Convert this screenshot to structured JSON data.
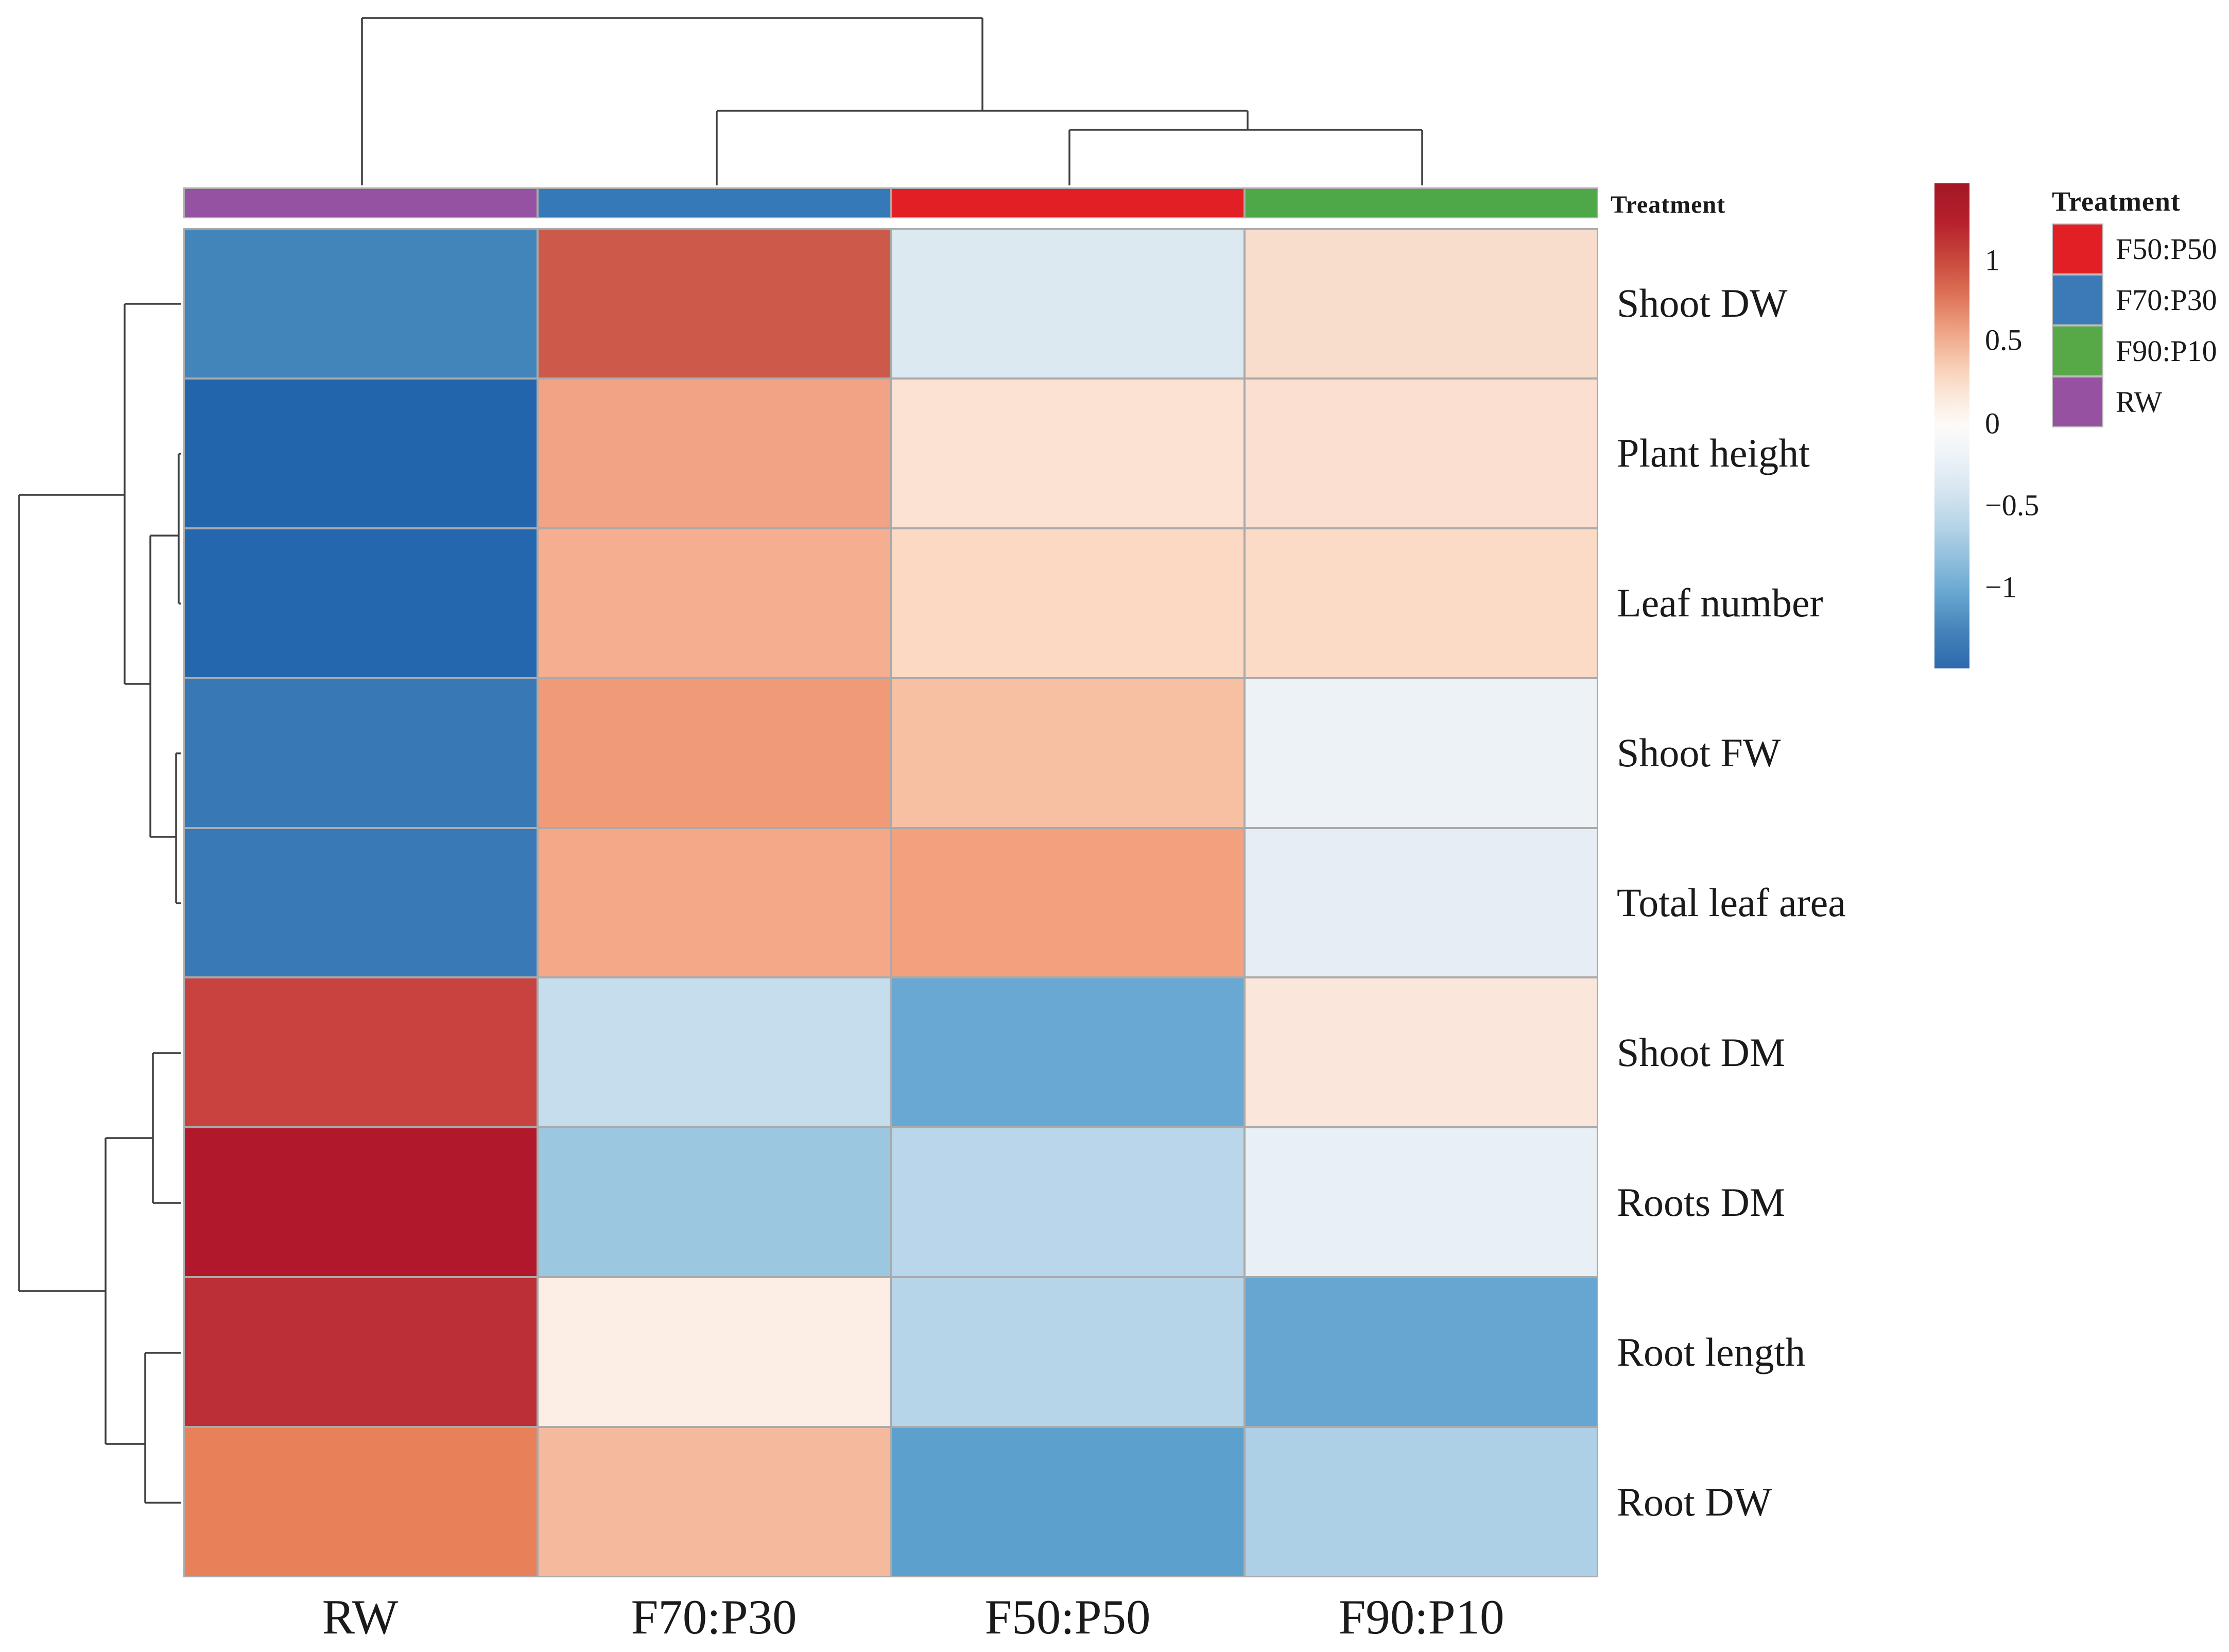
{
  "figure": {
    "background": "#ffffff"
  },
  "annotation_bar": {
    "label": "Treatment",
    "segments": [
      {
        "treatment": "RW",
        "color": "#9552a2"
      },
      {
        "treatment": "F70:P30",
        "color": "#3579b8"
      },
      {
        "treatment": "F50:P50",
        "color": "#e21f25"
      },
      {
        "treatment": "F90:P10",
        "color": "#4fa847"
      }
    ]
  },
  "chart_data": {
    "type": "heatmap",
    "title": "",
    "columns": [
      "RW",
      "F70:P30",
      "F50:P50",
      "F90:P10"
    ],
    "rows": [
      "Shoot DW",
      "Plant height",
      "Leaf number",
      "Shoot FW",
      "Total leaf area",
      "Shoot DM",
      "Roots DM",
      "Root length",
      "Root DW"
    ],
    "values_zscore_estimated": [
      [
        -1.0,
        1.15,
        -0.35,
        0.5
      ],
      [
        -1.4,
        0.8,
        0.45,
        0.45
      ],
      [
        -1.35,
        0.7,
        0.55,
        0.55
      ],
      [
        -1.2,
        0.85,
        0.65,
        -0.15
      ],
      [
        -1.15,
        0.75,
        0.8,
        -0.3
      ],
      [
        1.25,
        -0.55,
        -1.05,
        0.4
      ],
      [
        1.5,
        -0.75,
        -0.6,
        -0.25
      ],
      [
        1.35,
        0.2,
        -0.6,
        -1.05
      ],
      [
        0.95,
        0.6,
        -1.15,
        -0.7
      ]
    ],
    "cell_colors": [
      [
        "#4285ba",
        "#cb5a4a",
        "#dde9f1",
        "#f9ddcc"
      ],
      [
        "#2265ad",
        "#f2a285",
        "#fbe2d3",
        "#fbe0d1"
      ],
      [
        "#2467af",
        "#f6ae90",
        "#fbd9c3",
        "#fbdbc6"
      ],
      [
        "#3778b5",
        "#f09a78",
        "#f7c0a3",
        "#edf2f7"
      ],
      [
        "#3879b6",
        "#f4a888",
        "#f3a07f",
        "#e6edf4"
      ],
      [
        "#c8423f",
        "#c6dded",
        "#68a8d3",
        "#fae6db"
      ],
      [
        "#b2182b",
        "#9bc7e0",
        "#b9d6ea",
        "#e8eff5"
      ],
      [
        "#bc2f36",
        "#fceee5",
        "#b7d5e9",
        "#66a6d1"
      ],
      [
        "#e8815a",
        "#f5b99e",
        "#5ca0cd",
        "#aed0e6"
      ]
    ],
    "row_clustering": "((Shoot DW,((Plant height,Leaf number),(Shoot FW,Total leaf area))),((Shoot DM,Roots DM),(Root length,Root DW)))",
    "column_clustering": "(RW,(F70:P30,(F50:P50,F90:P10)))",
    "colorbar": {
      "range": [
        -1.5,
        1.5
      ],
      "ticks": [
        {
          "label": "1",
          "pos_pct": 15.8
        },
        {
          "label": "0.5",
          "pos_pct": 32.3
        },
        {
          "label": "0",
          "pos_pct": 49.5
        },
        {
          "label": "−0.5",
          "pos_pct": 66.3
        },
        {
          "label": "−1",
          "pos_pct": 83.2
        }
      ],
      "gradient_stops": [
        [
          "0%",
          "#a41726"
        ],
        [
          "8%",
          "#b6202c"
        ],
        [
          "16%",
          "#c94a3d"
        ],
        [
          "23%",
          "#dd7257"
        ],
        [
          "30%",
          "#eda081"
        ],
        [
          "38%",
          "#f7d0b6"
        ],
        [
          "44%",
          "#fbe9dc"
        ],
        [
          "50%",
          "#fcfbf9"
        ],
        [
          "56%",
          "#eef3f7"
        ],
        [
          "63%",
          "#d7e6f0"
        ],
        [
          "70%",
          "#b9d6e9"
        ],
        [
          "77%",
          "#93c0de"
        ],
        [
          "84%",
          "#6ba9d3"
        ],
        [
          "92%",
          "#4684ba"
        ],
        [
          "100%",
          "#2c69ae"
        ]
      ]
    }
  },
  "legend": {
    "title": "Treatment",
    "items": [
      {
        "label": "F50:P50",
        "color": "#e21f25"
      },
      {
        "label": "F70:P30",
        "color": "#3b7ab7"
      },
      {
        "label": "F90:P10",
        "color": "#57a847"
      },
      {
        "label": "RW",
        "color": "#9651a0"
      }
    ]
  },
  "dendrograms": {
    "stroke": "#3f3f3f",
    "col_segments": [
      [
        703,
        35,
        1908,
        35
      ],
      [
        703,
        35,
        703,
        360
      ],
      [
        1908,
        35,
        1908,
        215
      ],
      [
        1392,
        215,
        2423,
        215
      ],
      [
        1392,
        215,
        1392,
        360
      ],
      [
        2423,
        215,
        2423,
        252
      ],
      [
        2077,
        252,
        2762,
        252
      ],
      [
        2077,
        252,
        2077,
        360
      ],
      [
        2762,
        252,
        2762,
        360
      ]
    ],
    "row_segments": [
      [
        37,
        961,
        242,
        961
      ],
      [
        37,
        961,
        37,
        2507
      ],
      [
        37,
        2507,
        205,
        2507
      ],
      [
        242,
        590,
        242,
        1328
      ],
      [
        242,
        590,
        352,
        590
      ],
      [
        242,
        1328,
        292,
        1328
      ],
      [
        292,
        1040,
        292,
        1625
      ],
      [
        292,
        1040,
        347,
        1040
      ],
      [
        347,
        881,
        347,
        1172
      ],
      [
        347,
        881,
        352,
        881
      ],
      [
        347,
        1172,
        352,
        1172
      ],
      [
        292,
        1625,
        342,
        1625
      ],
      [
        342,
        1463,
        342,
        1754
      ],
      [
        342,
        1463,
        352,
        1463
      ],
      [
        342,
        1754,
        352,
        1754
      ],
      [
        205,
        2210,
        205,
        2804
      ],
      [
        205,
        2210,
        297,
        2210
      ],
      [
        297,
        2045,
        297,
        2336
      ],
      [
        297,
        2045,
        352,
        2045
      ],
      [
        297,
        2336,
        352,
        2336
      ],
      [
        205,
        2804,
        282,
        2804
      ],
      [
        282,
        2627,
        282,
        2918
      ],
      [
        282,
        2627,
        352,
        2627
      ],
      [
        282,
        2918,
        352,
        2918
      ]
    ]
  }
}
